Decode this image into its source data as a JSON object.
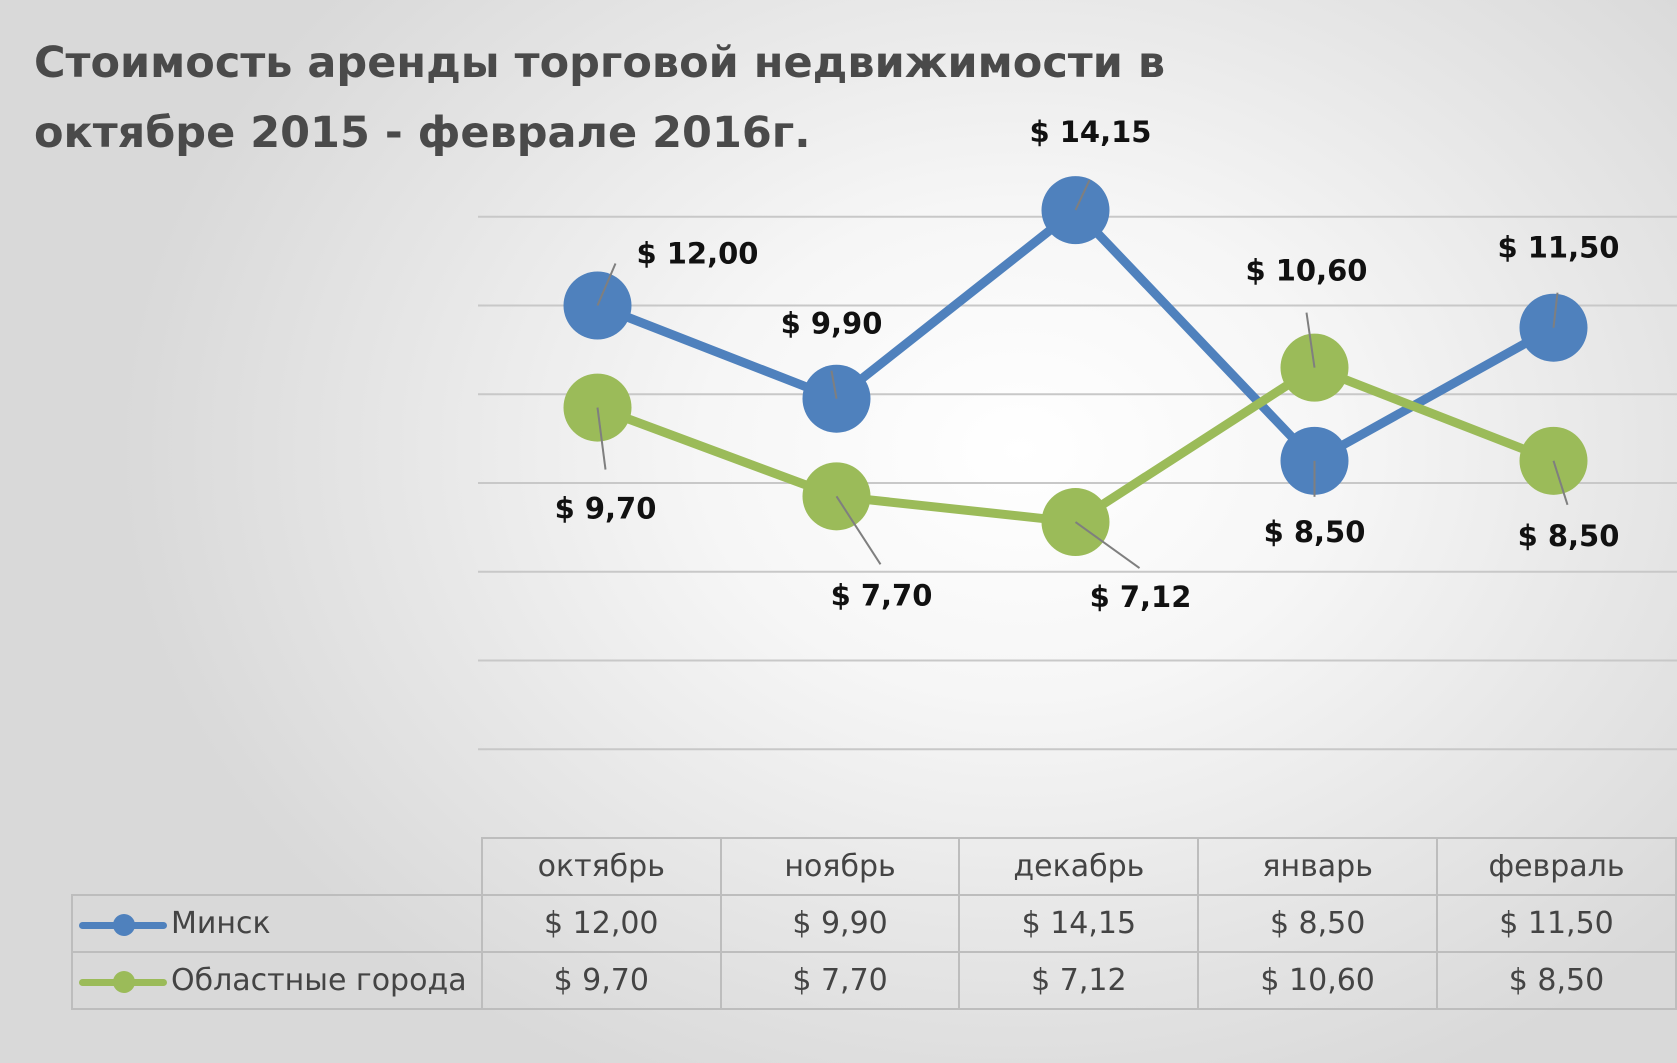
{
  "chart_data": {
    "type": "line",
    "title": "Стоимость аренды торговой недвижимости в октябре 2015 - феврале 2016г.",
    "categories": [
      "октябрь",
      "ноябрь",
      "декабрь",
      "январь",
      "февраль"
    ],
    "series": [
      {
        "name": "Минск",
        "values": [
          12.0,
          9.9,
          14.15,
          8.5,
          11.5
        ],
        "labels": [
          "$ 12,00",
          "$ 9,90",
          "$ 14,15",
          "$ 8,50",
          "$ 11,50"
        ],
        "color": "#4f81bd"
      },
      {
        "name": "Областные города",
        "values": [
          9.7,
          7.7,
          7.12,
          10.6,
          8.5
        ],
        "labels": [
          "$ 9,70",
          "$ 7,70",
          "$ 7,12",
          "$ 10,60",
          "$ 8,50"
        ],
        "color": "#9bbb59"
      }
    ],
    "ylim": [
      0,
      16
    ],
    "grid": true,
    "data_table": true
  }
}
